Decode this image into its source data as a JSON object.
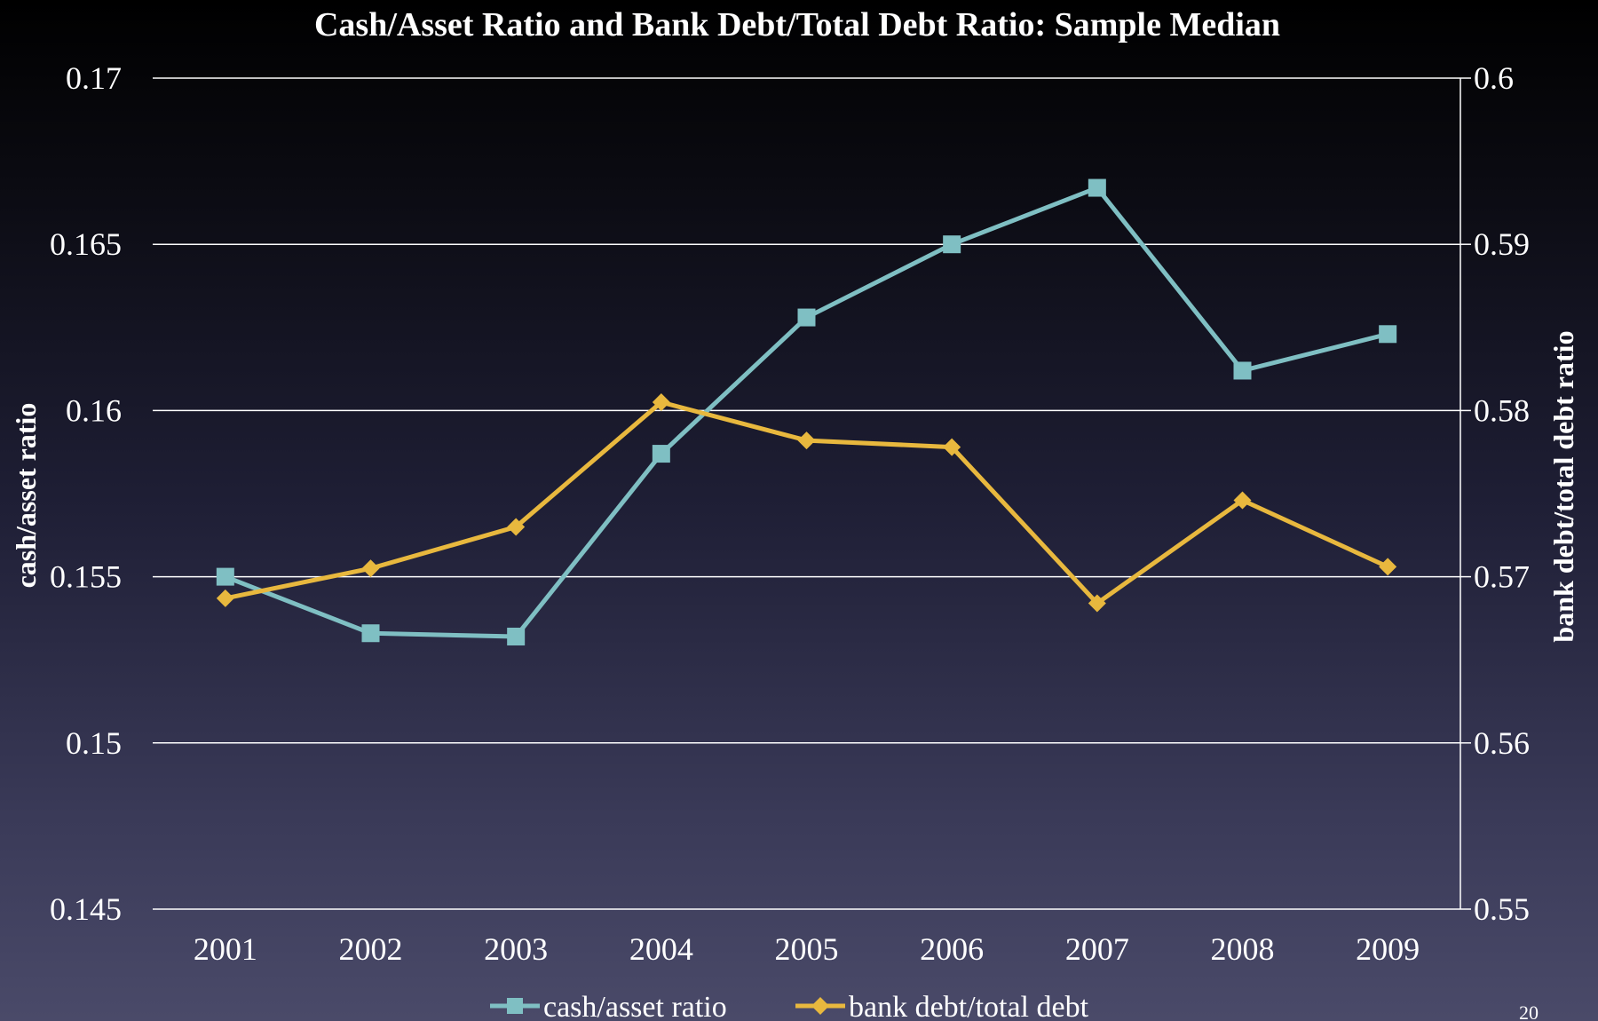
{
  "chart_data": {
    "type": "line",
    "title": "Cash/Asset Ratio and Bank Debt/Total Debt Ratio: Sample Median",
    "categories": [
      "2001",
      "2002",
      "2003",
      "2004",
      "2005",
      "2006",
      "2007",
      "2008",
      "2009"
    ],
    "ylabel": "cash/asset ratio",
    "y2label": "bank debt/total debt ratio",
    "ylim": [
      0.145,
      0.17
    ],
    "y2lim": [
      0.55,
      0.6
    ],
    "yticks": [
      "0.145",
      "0.15",
      "0.155",
      "0.16",
      "0.165",
      "0.17"
    ],
    "y2ticks": [
      "0.55",
      "0.56",
      "0.57",
      "0.58",
      "0.59",
      "0.6"
    ],
    "grid": true,
    "legend_position": "bottom",
    "series": [
      {
        "name": "cash/asset ratio",
        "axis": "left",
        "color": "#7fbfc3",
        "marker": "square",
        "values": [
          0.155,
          0.1533,
          0.1532,
          0.1587,
          0.1628,
          0.165,
          0.1667,
          0.1612,
          0.1623
        ]
      },
      {
        "name": "bank debt/total debt",
        "axis": "right",
        "color": "#e8b83e",
        "marker": "diamond",
        "values": [
          0.5687,
          0.5705,
          0.573,
          0.5805,
          0.5782,
          0.5778,
          0.5684,
          0.5746,
          0.5706
        ]
      }
    ]
  },
  "page_number": "20"
}
